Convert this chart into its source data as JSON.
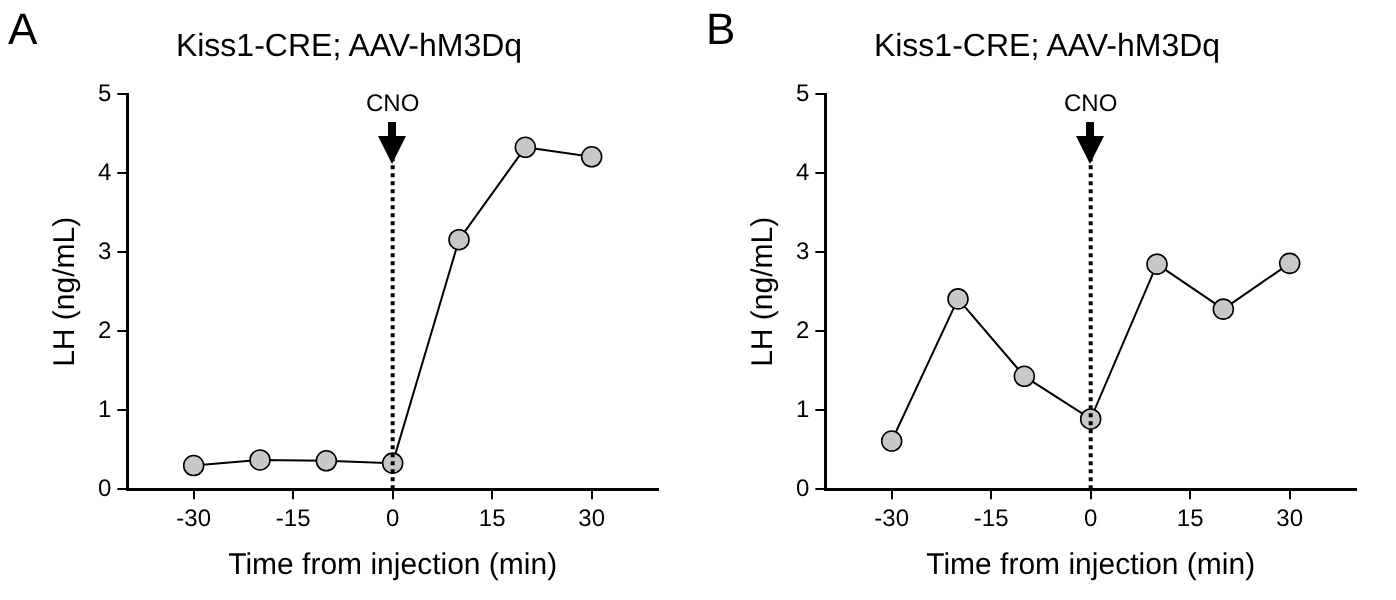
{
  "chart_data": [
    {
      "type": "line",
      "title": "Kiss1-CRE; AAV-hM3Dq",
      "annotations": [
        "A"
      ],
      "xlabel": "Time from injection (min)",
      "ylabel": "LH (ng/mL)",
      "x": [
        -30,
        -20,
        -10,
        0,
        10,
        20,
        30
      ],
      "series": [
        {
          "color": "#c8c8c8",
          "values": [
            0.3,
            0.37,
            0.36,
            0.33,
            3.16,
            4.33,
            4.21
          ]
        }
      ],
      "xlim": [
        -40,
        40
      ],
      "xticks": [
        -30,
        -15,
        0,
        15,
        30
      ],
      "ylim": [
        0,
        5
      ],
      "yticks": [
        0,
        1,
        2,
        3,
        4,
        5
      ],
      "ref_lines": [
        {
          "axis": "x",
          "value": 0,
          "label": "CNO",
          "line_style": "dotted"
        }
      ],
      "grid": false,
      "legend": false,
      "marker": "circle",
      "line_style": "solid"
    },
    {
      "type": "line",
      "title": "Kiss1-CRE; AAV-hM3Dq",
      "annotations": [
        "B"
      ],
      "xlabel": "Time from injection (min)",
      "ylabel": "LH (ng/mL)",
      "x": [
        -30,
        -20,
        -10,
        0,
        10,
        20,
        30
      ],
      "series": [
        {
          "color": "#c8c8c8",
          "values": [
            0.61,
            2.41,
            1.43,
            0.89,
            2.85,
            2.28,
            2.86
          ]
        }
      ],
      "xlim": [
        -40,
        40
      ],
      "xticks": [
        -30,
        -15,
        0,
        15,
        30
      ],
      "ylim": [
        0,
        5
      ],
      "yticks": [
        0,
        1,
        2,
        3,
        4,
        5
      ],
      "ref_lines": [
        {
          "axis": "x",
          "value": 0,
          "label": "CNO",
          "line_style": "dotted"
        }
      ],
      "grid": false,
      "legend": false,
      "marker": "circle",
      "line_style": "solid"
    }
  ]
}
